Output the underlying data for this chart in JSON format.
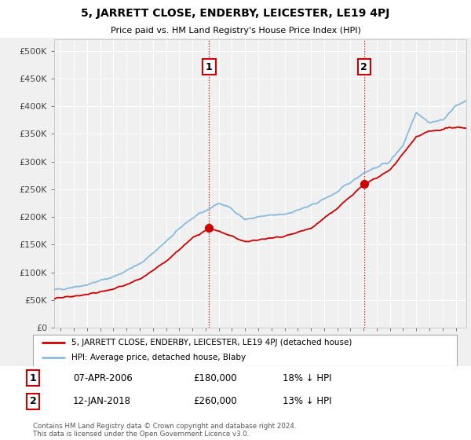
{
  "title": "5, JARRETT CLOSE, ENDERBY, LEICESTER, LE19 4PJ",
  "subtitle": "Price paid vs. HM Land Registry's House Price Index (HPI)",
  "legend_line1": "5, JARRETT CLOSE, ENDERBY, LEICESTER, LE19 4PJ (detached house)",
  "legend_line2": "HPI: Average price, detached house, Blaby",
  "annotation1_label": "1",
  "annotation1_date": "07-APR-2006",
  "annotation1_price": "£180,000",
  "annotation1_pct": "18% ↓ HPI",
  "annotation2_label": "2",
  "annotation2_date": "12-JAN-2018",
  "annotation2_price": "£260,000",
  "annotation2_pct": "13% ↓ HPI",
  "footer": "Contains HM Land Registry data © Crown copyright and database right 2024.\nThis data is licensed under the Open Government Licence v3.0.",
  "sale_color": "#cc0000",
  "hpi_color": "#88bbdd",
  "vline_color": "#cc0000",
  "dot_color": "#cc0000",
  "background_color": "#f0f0f0",
  "plot_bg": "#f0f0f0",
  "grid_color": "#ffffff",
  "ylim": [
    0,
    520000
  ],
  "yticks": [
    0,
    50000,
    100000,
    150000,
    200000,
    250000,
    300000,
    350000,
    400000,
    450000,
    500000
  ],
  "ytick_labels": [
    "£0",
    "£50K",
    "£100K",
    "£150K",
    "£200K",
    "£250K",
    "£300K",
    "£350K",
    "£400K",
    "£450K",
    "£500K"
  ],
  "sale1_x": 2006.27,
  "sale1_y": 180000,
  "sale2_x": 2018.04,
  "sale2_y": 260000,
  "xmin": 1994.5,
  "xmax": 2025.8
}
